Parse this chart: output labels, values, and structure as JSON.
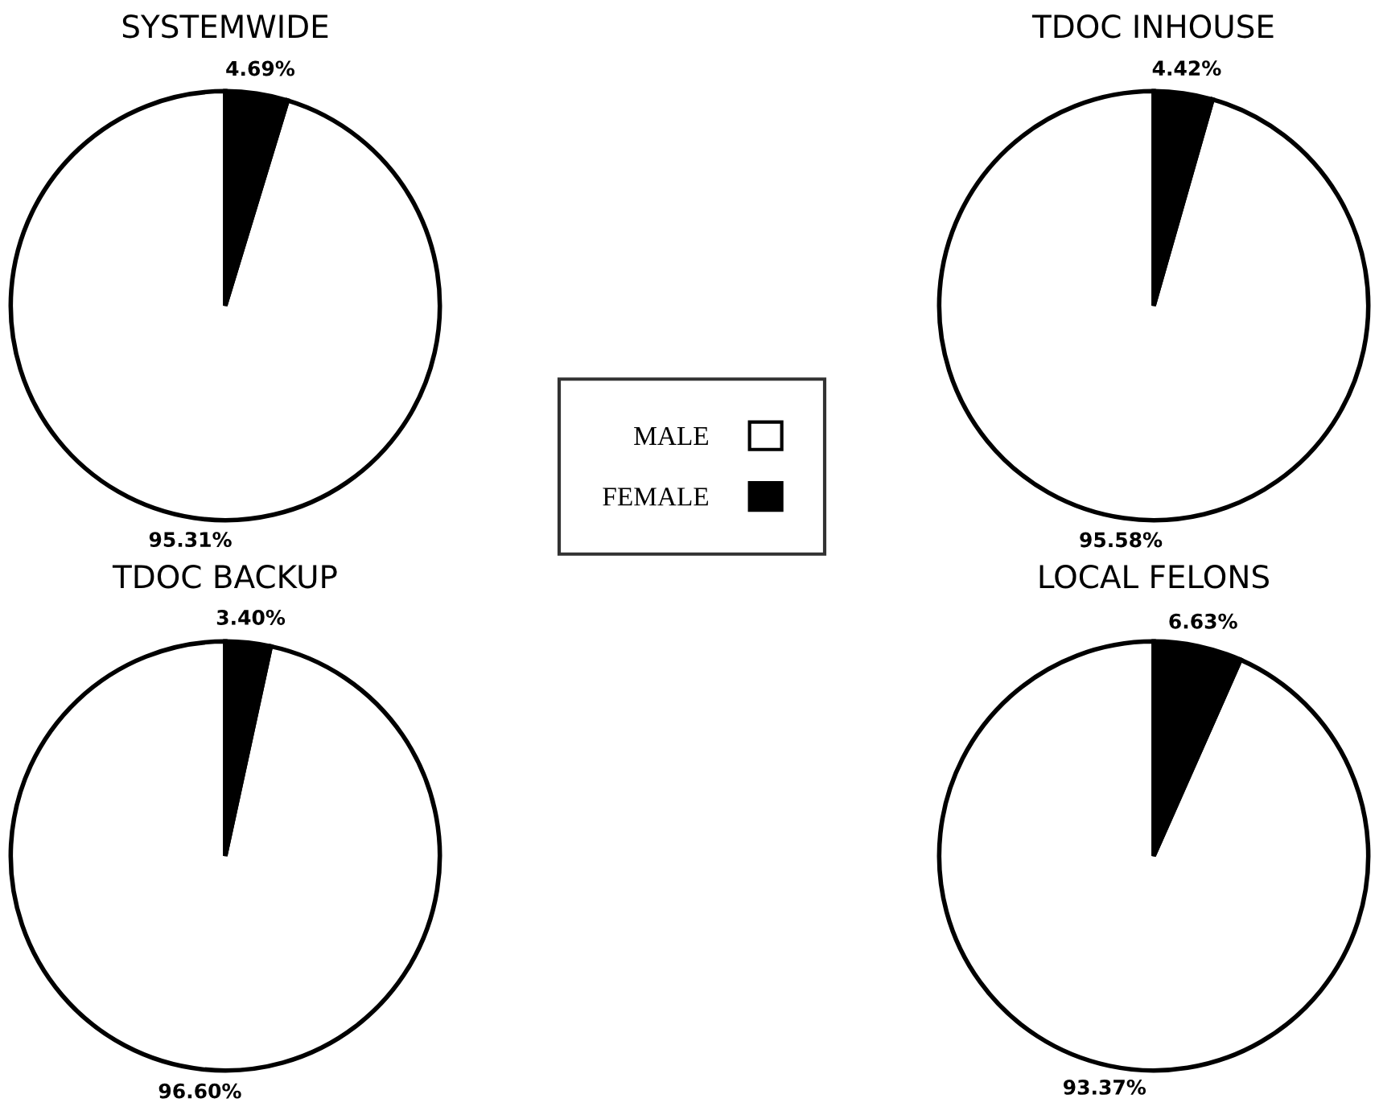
{
  "chart_data": [
    {
      "type": "pie",
      "title": "SYSTEMWIDE",
      "categories": [
        "MALE",
        "FEMALE"
      ],
      "values": [
        95.31,
        4.69
      ],
      "colors": [
        "#ffffff",
        "#000000"
      ],
      "value_labels": [
        "95.31%",
        "4.69%"
      ],
      "legend": "right"
    },
    {
      "type": "pie",
      "title": "TDOC INHOUSE",
      "values": [
        95.58,
        4.42
      ],
      "colors": [
        "#ffffff",
        "#000000"
      ],
      "value_labels": [
        "95.58%",
        "4.42%"
      ]
    },
    {
      "type": "pie",
      "title": "TDOC BACKUP",
      "values": [
        96.6,
        3.4
      ],
      "colors": [
        "#ffffff",
        "#000000"
      ],
      "value_labels": [
        "96.60%",
        "3.40%"
      ]
    },
    {
      "type": "pie",
      "title": "LOCAL FELONS",
      "values": [
        93.37,
        6.63
      ],
      "colors": [
        "#ffffff",
        "#000000"
      ],
      "value_labels": [
        "93.37%",
        "6.63%"
      ]
    }
  ]
}
